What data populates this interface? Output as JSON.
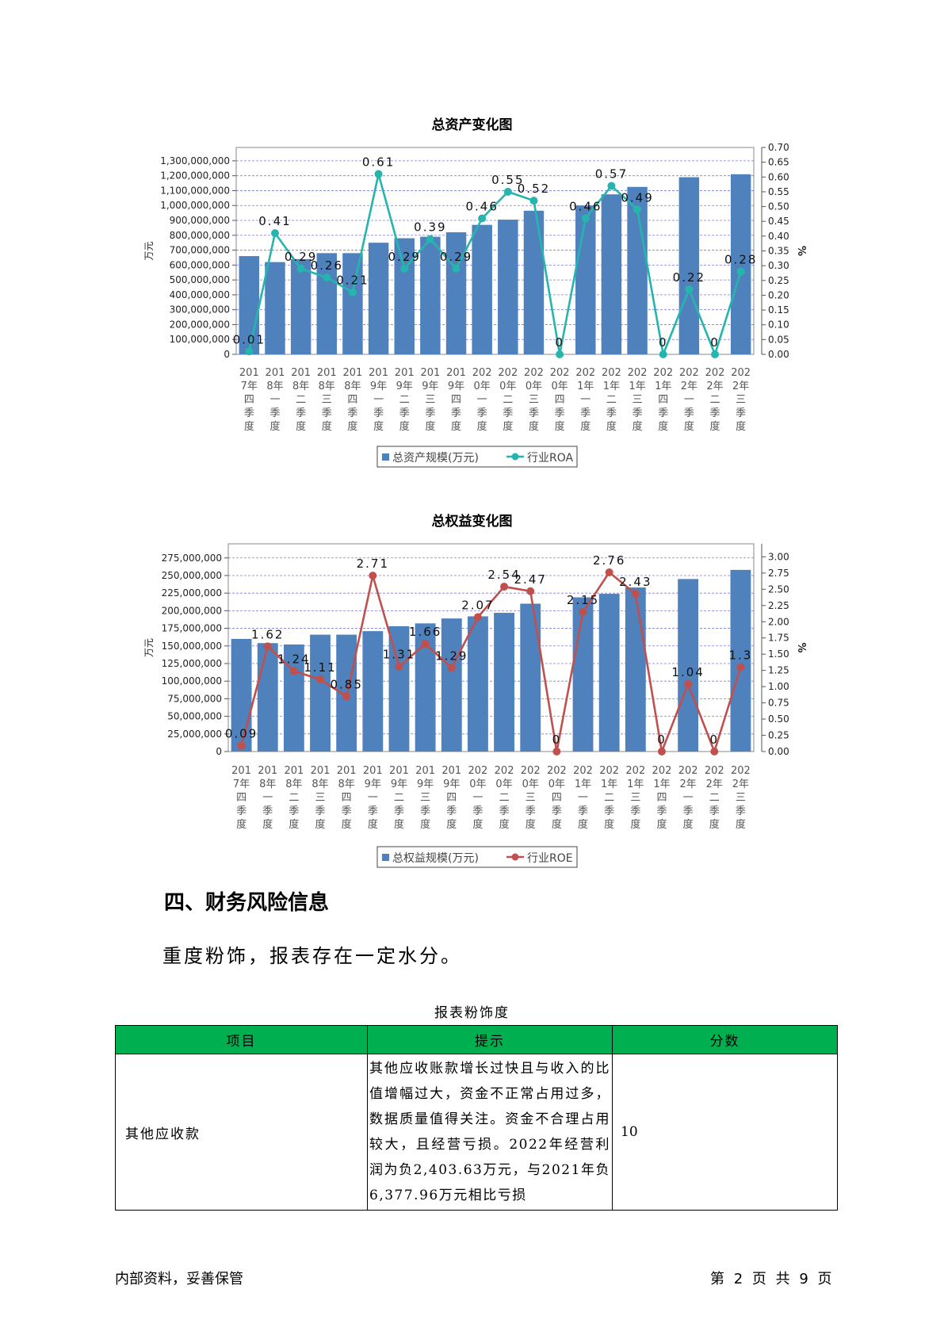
{
  "chart_data": [
    {
      "type": "bar+line",
      "title": "总资产变化图",
      "ylabel_left": "万元",
      "ylabel_right": "%",
      "categories": [
        "2017年四季度",
        "2018年一季度",
        "2018年二季度",
        "2018年三季度",
        "2018年四季度",
        "2019年一季度",
        "2019年二季度",
        "2019年三季度",
        "2019年四季度",
        "2020年一季度",
        "2020年二季度",
        "2020年三季度",
        "2020年四季度",
        "2021年一季度",
        "2021年二季度",
        "2021年三季度",
        "2021年四季度",
        "2022年一季度",
        "2022年二季度",
        "2022年三季度"
      ],
      "category_lines": [
        [
          "201",
          "7年",
          "四",
          "季",
          "度"
        ],
        [
          "201",
          "8年",
          "一",
          "季",
          "度"
        ],
        [
          "201",
          "8年",
          "二",
          "季",
          "度"
        ],
        [
          "201",
          "8年",
          "三",
          "季",
          "度"
        ],
        [
          "201",
          "8年",
          "四",
          "季",
          "度"
        ],
        [
          "201",
          "9年",
          "一",
          "季",
          "度"
        ],
        [
          "201",
          "9年",
          "二",
          "季",
          "度"
        ],
        [
          "201",
          "9年",
          "三",
          "季",
          "度"
        ],
        [
          "201",
          "9年",
          "四",
          "季",
          "度"
        ],
        [
          "202",
          "0年",
          "一",
          "季",
          "度"
        ],
        [
          "202",
          "0年",
          "二",
          "季",
          "度"
        ],
        [
          "202",
          "0年",
          "三",
          "季",
          "度"
        ],
        [
          "202",
          "0年",
          "四",
          "季",
          "度"
        ],
        [
          "202",
          "1年",
          "一",
          "季",
          "度"
        ],
        [
          "202",
          "1年",
          "二",
          "季",
          "度"
        ],
        [
          "202",
          "1年",
          "三",
          "季",
          "度"
        ],
        [
          "202",
          "1年",
          "四",
          "季",
          "度"
        ],
        [
          "202",
          "2年",
          "一",
          "季",
          "度"
        ],
        [
          "202",
          "2年",
          "二",
          "季",
          "度"
        ],
        [
          "202",
          "2年",
          "三",
          "季",
          "度"
        ]
      ],
      "series": [
        {
          "name": "总资产规模(万元)",
          "kind": "bar",
          "axis": "left",
          "color": "#4f81bd",
          "values": [
            660000000,
            620000000,
            640000000,
            680000000,
            680000000,
            750000000,
            780000000,
            790000000,
            820000000,
            870000000,
            905000000,
            965000000,
            0,
            1000000000,
            1075000000,
            1125000000,
            0,
            1190000000,
            0,
            1210000000
          ]
        },
        {
          "name": "行业ROA",
          "kind": "line",
          "axis": "right",
          "color": "#26b5ae",
          "values": [
            0.01,
            0.41,
            0.29,
            0.26,
            0.21,
            0.61,
            0.29,
            0.39,
            0.29,
            0.46,
            0.55,
            0.52,
            0,
            0.46,
            0.57,
            0.49,
            0,
            0.22,
            0,
            0.28
          ],
          "labels": [
            "0.01",
            "0.41",
            "0.29",
            "0.26",
            "0.21",
            "0.61",
            "0.29",
            "0.39",
            "0.29",
            "0.46",
            "0.55",
            "0.52",
            "0",
            "0.46",
            "0.57",
            "0.49",
            "0",
            "0.22",
            "0",
            "0.28"
          ]
        }
      ],
      "left_ticks": [
        "0",
        "100,000,000",
        "200,000,000",
        "300,000,000",
        "400,000,000",
        "500,000,000",
        "600,000,000",
        "700,000,000",
        "800,000,000",
        "900,000,000",
        "1,000,000,000",
        "1,100,000,000",
        "1,200,000,000",
        "1,300,000,000"
      ],
      "left_tick_step": 100000000,
      "right_ticks": [
        "0.00",
        "0.05",
        "0.10",
        "0.15",
        "0.20",
        "0.25",
        "0.30",
        "0.35",
        "0.40",
        "0.45",
        "0.50",
        "0.55",
        "0.60",
        "0.65",
        "0.70"
      ],
      "right_tick_step": 0.05,
      "ylim_left": [
        0,
        1390000000
      ],
      "ylim_right": [
        0,
        0.7
      ],
      "legend_position": "bottom",
      "grid": true
    },
    {
      "type": "bar+line",
      "title": "总权益变化图",
      "ylabel_left": "万元",
      "ylabel_right": "%",
      "categories": [
        "2017年四季度",
        "2018年一季度",
        "2018年二季度",
        "2018年三季度",
        "2018年四季度",
        "2019年一季度",
        "2019年二季度",
        "2019年三季度",
        "2019年四季度",
        "2020年一季度",
        "2020年二季度",
        "2020年三季度",
        "2020年四季度",
        "2021年一季度",
        "2021年二季度",
        "2021年三季度",
        "2021年四季度",
        "2022年一季度",
        "2022年二季度",
        "2022年三季度"
      ],
      "category_lines": [
        [
          "201",
          "7年",
          "四",
          "季",
          "度"
        ],
        [
          "201",
          "8年",
          "一",
          "季",
          "度"
        ],
        [
          "201",
          "8年",
          "二",
          "季",
          "度"
        ],
        [
          "201",
          "8年",
          "三",
          "季",
          "度"
        ],
        [
          "201",
          "8年",
          "四",
          "季",
          "度"
        ],
        [
          "201",
          "9年",
          "一",
          "季",
          "度"
        ],
        [
          "201",
          "9年",
          "二",
          "季",
          "度"
        ],
        [
          "201",
          "9年",
          "三",
          "季",
          "度"
        ],
        [
          "201",
          "9年",
          "四",
          "季",
          "度"
        ],
        [
          "202",
          "0年",
          "一",
          "季",
          "度"
        ],
        [
          "202",
          "0年",
          "二",
          "季",
          "度"
        ],
        [
          "202",
          "0年",
          "三",
          "季",
          "度"
        ],
        [
          "202",
          "0年",
          "四",
          "季",
          "度"
        ],
        [
          "202",
          "1年",
          "一",
          "季",
          "度"
        ],
        [
          "202",
          "1年",
          "二",
          "季",
          "度"
        ],
        [
          "202",
          "1年",
          "三",
          "季",
          "度"
        ],
        [
          "202",
          "1年",
          "四",
          "季",
          "度"
        ],
        [
          "202",
          "2年",
          "一",
          "季",
          "度"
        ],
        [
          "202",
          "2年",
          "二",
          "季",
          "度"
        ],
        [
          "202",
          "2年",
          "三",
          "季",
          "度"
        ]
      ],
      "series": [
        {
          "name": "总权益规模(万元)",
          "kind": "bar",
          "axis": "left",
          "color": "#4f81bd",
          "values": [
            160000000,
            154000000,
            152000000,
            166000000,
            166000000,
            171000000,
            178000000,
            182000000,
            189000000,
            192000000,
            197000000,
            210000000,
            0,
            219000000,
            224000000,
            233000000,
            0,
            245000000,
            0,
            258000000
          ]
        },
        {
          "name": "行业ROE",
          "kind": "line",
          "axis": "right",
          "color": "#c0504d",
          "values": [
            0.09,
            1.62,
            1.24,
            1.11,
            0.85,
            2.71,
            1.31,
            1.66,
            1.29,
            2.07,
            2.54,
            2.47,
            0,
            2.15,
            2.76,
            2.43,
            0,
            1.04,
            0,
            1.3
          ],
          "labels": [
            "0.09",
            "1.62",
            "1.24",
            "1.11",
            "0.85",
            "2.71",
            "1.31",
            "1.66",
            "1.29",
            "2.07",
            "2.54",
            "2.47",
            "0",
            "2.15",
            "2.76",
            "2.43",
            "0",
            "1.04",
            "0",
            "1.3"
          ]
        }
      ],
      "left_ticks": [
        "0",
        "25,000,000",
        "50,000,000",
        "75,000,000",
        "100,000,000",
        "125,000,000",
        "150,000,000",
        "175,000,000",
        "200,000,000",
        "225,000,000",
        "250,000,000",
        "275,000,000"
      ],
      "left_tick_step": 25000000,
      "right_ticks": [
        "0.00",
        "0.25",
        "0.50",
        "0.75",
        "1.00",
        "1.25",
        "1.50",
        "1.75",
        "2.00",
        "2.25",
        "2.50",
        "2.75",
        "3.00"
      ],
      "right_tick_step": 0.25,
      "ylim_left": [
        0,
        295000000
      ],
      "ylim_right": [
        0,
        3.2
      ],
      "legend_position": "bottom",
      "grid": true
    }
  ],
  "section": {
    "heading": "四、财务风险信息",
    "body": "重度粉饰，报表存在一定水分。"
  },
  "table": {
    "caption": "报表粉饰度",
    "headers": [
      "项目",
      "提示",
      "分数"
    ],
    "rows": [
      {
        "item": "其他应收款",
        "hint": "其他应收账款增长过快且与收入的比值增幅过大，资金不正常占用过多，数据质量值得关注。资金不合理占用较大，且经营亏损。2022年经营利润为负2,403.63万元，与2021年负6,377.96万元相比亏损",
        "score": "10"
      }
    ]
  },
  "footer": {
    "left": "内部资料，妥善保管",
    "right": "第 2 页  共 9 页"
  }
}
